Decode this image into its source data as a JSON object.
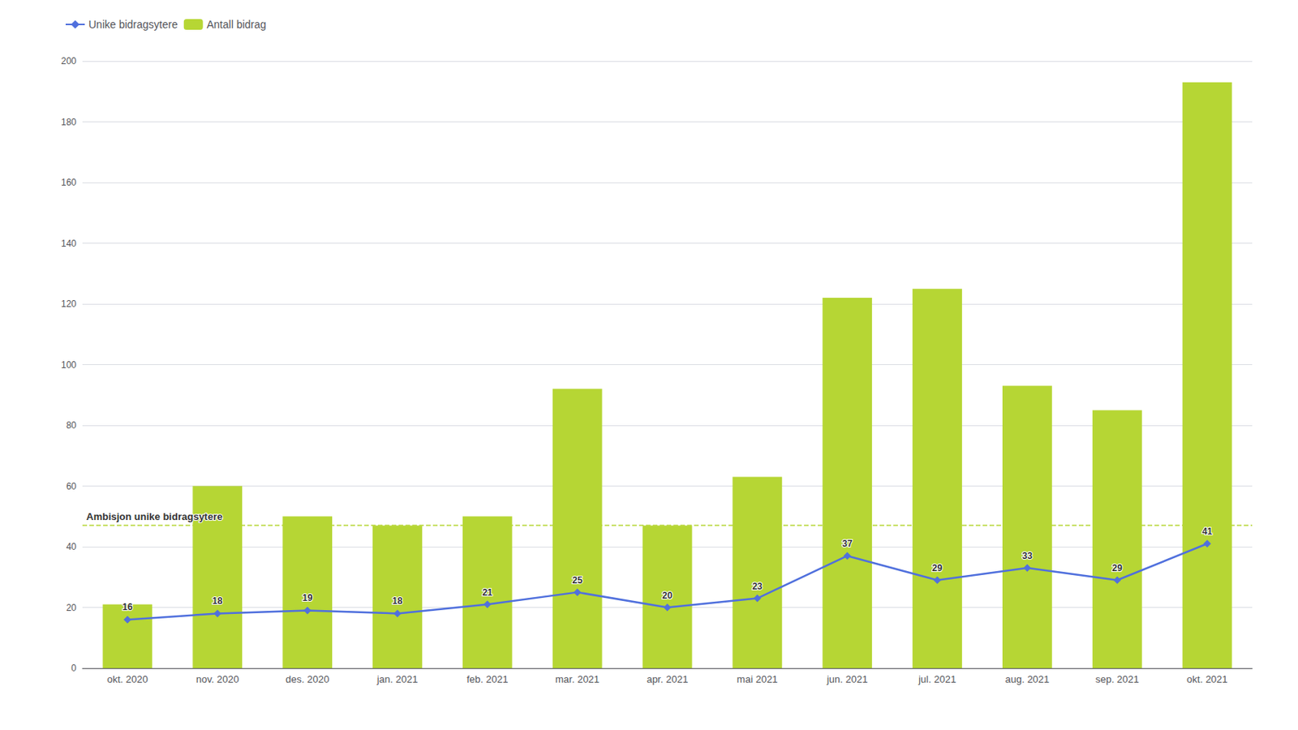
{
  "chart_data": {
    "type": "bar",
    "categories": [
      "okt. 2020",
      "nov. 2020",
      "des. 2020",
      "jan. 2021",
      "feb. 2021",
      "mar. 2021",
      "apr. 2021",
      "mai 2021",
      "jun. 2021",
      "jul. 2021",
      "aug. 2021",
      "sep. 2021",
      "okt. 2021"
    ],
    "series": [
      {
        "name": "Unike bidragsytere",
        "type": "line",
        "marker": "diamond",
        "data_labels": true,
        "values": [
          16,
          18,
          19,
          18,
          21,
          25,
          20,
          23,
          37,
          29,
          33,
          29,
          41
        ]
      },
      {
        "name": "Antall bidrag",
        "type": "bar",
        "values": [
          21,
          60,
          50,
          47,
          50,
          92,
          47,
          63,
          122,
          125,
          93,
          85,
          193
        ]
      }
    ],
    "annotations": [
      {
        "text": "Ambisjon unike bidragsytere",
        "y": 47,
        "line_style": "dashed"
      }
    ],
    "ylim": [
      0,
      200
    ],
    "yticks": [
      0,
      20,
      40,
      60,
      80,
      100,
      120,
      140,
      160,
      180,
      200
    ],
    "grid": true,
    "legend": "upper left"
  }
}
